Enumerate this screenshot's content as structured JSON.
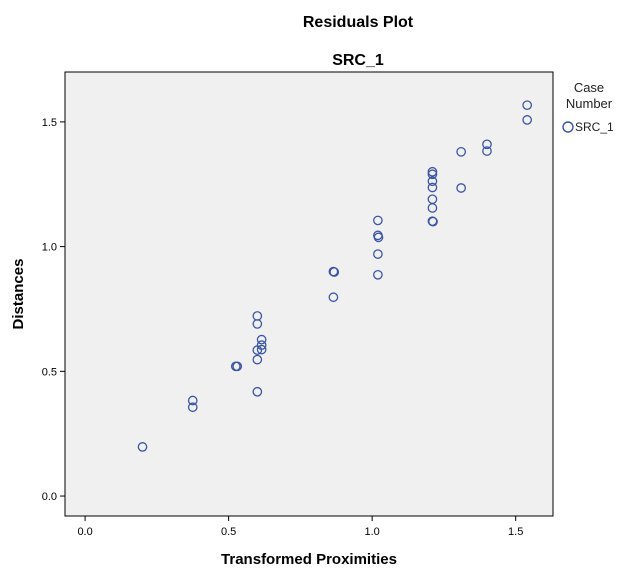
{
  "chart_data": {
    "type": "scatter",
    "title": "Residuals Plot",
    "subtitle": "SRC_1",
    "xlabel": "Transformed Proximities",
    "ylabel": "Distances",
    "xlim": [
      -0.07,
      1.63
    ],
    "ylim": [
      -0.08,
      1.7
    ],
    "xticks": [
      0.0,
      0.5,
      1.0,
      1.5
    ],
    "yticks": [
      0.0,
      0.5,
      1.0,
      1.5
    ],
    "xtick_labels": [
      "0.0",
      "0.5",
      "1.0",
      "1.5"
    ],
    "ytick_labels": [
      "0.0",
      "0.5",
      "1.0",
      "1.5"
    ],
    "grid": false,
    "legend_position": "right",
    "legend_title": [
      "Case",
      "Number"
    ],
    "series": [
      {
        "name": "SRC_1",
        "color": "#3b55a6",
        "marker": "open-circle",
        "points": [
          [
            0.2,
            0.197
          ],
          [
            0.375,
            0.383
          ],
          [
            0.375,
            0.356
          ],
          [
            0.525,
            0.52
          ],
          [
            0.53,
            0.52
          ],
          [
            0.6,
            0.722
          ],
          [
            0.6,
            0.69
          ],
          [
            0.6,
            0.585
          ],
          [
            0.6,
            0.547
          ],
          [
            0.6,
            0.418
          ],
          [
            0.615,
            0.627
          ],
          [
            0.615,
            0.605
          ],
          [
            0.615,
            0.587
          ],
          [
            0.865,
            0.9
          ],
          [
            0.868,
            0.898
          ],
          [
            0.865,
            0.797
          ],
          [
            1.02,
            1.105
          ],
          [
            1.02,
            1.045
          ],
          [
            1.022,
            1.037
          ],
          [
            1.02,
            0.97
          ],
          [
            1.02,
            0.887
          ],
          [
            1.21,
            1.3
          ],
          [
            1.21,
            1.29
          ],
          [
            1.21,
            1.262
          ],
          [
            1.21,
            1.237
          ],
          [
            1.21,
            1.19
          ],
          [
            1.21,
            1.155
          ],
          [
            1.21,
            1.102
          ],
          [
            1.212,
            1.1
          ],
          [
            1.31,
            1.38
          ],
          [
            1.31,
            1.235
          ],
          [
            1.4,
            1.41
          ],
          [
            1.4,
            1.383
          ],
          [
            1.54,
            1.567
          ],
          [
            1.54,
            1.508
          ]
        ]
      }
    ]
  }
}
